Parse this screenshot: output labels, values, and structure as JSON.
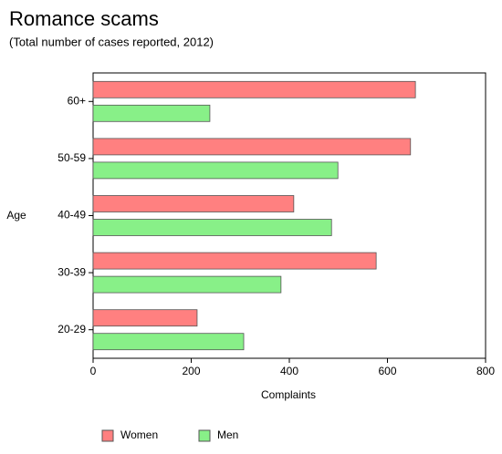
{
  "chart_data": {
    "type": "bar",
    "orientation": "horizontal",
    "title": "Romance scams",
    "subtitle": "(Total number of cases reported, 2012)",
    "x_label": "Complaints",
    "y_label": "Age",
    "categories": [
      "60+",
      "50-59",
      "40-49",
      "30-39",
      "20-29"
    ],
    "series": [
      {
        "name": "Women",
        "color": "#ff8080",
        "values": [
          657,
          647,
          409,
          577,
          212
        ]
      },
      {
        "name": "Men",
        "color": "#88f088",
        "values": [
          238,
          499,
          486,
          383,
          307
        ]
      }
    ],
    "xlim": [
      0,
      800
    ],
    "xticks": [
      0,
      200,
      400,
      600,
      800
    ],
    "legend": "bottom"
  }
}
